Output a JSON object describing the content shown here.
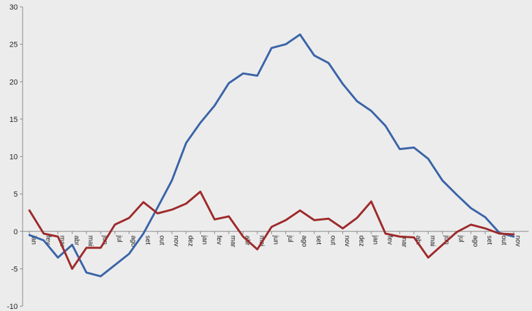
{
  "chart_data": {
    "type": "line",
    "title": "",
    "xlabel": "",
    "ylabel": "",
    "ylim": [
      -10,
      30
    ],
    "yticks": [
      -10,
      -5,
      0,
      5,
      10,
      15,
      20,
      25,
      30
    ],
    "grid": false,
    "legend": "none",
    "categories": [
      "jan",
      "fev",
      "mar",
      "abr",
      "mai",
      "jun",
      "jul",
      "ago",
      "set",
      "out",
      "nov",
      "dez",
      "jan",
      "fev",
      "mar",
      "abr",
      "mai",
      "jun",
      "jul",
      "ago",
      "set",
      "out",
      "nov",
      "dez",
      "jan",
      "fev",
      "mar",
      "abr",
      "mai",
      "jun",
      "jul",
      "ago",
      "set",
      "out",
      "nov"
    ],
    "series": [
      {
        "color": "#3a64a8",
        "values": [
          -0.5,
          -1.2,
          -3.5,
          -1.8,
          -5.5,
          -6.0,
          -4.5,
          -3.0,
          -0.3,
          3.2,
          6.8,
          11.8,
          14.5,
          16.8,
          19.8,
          21.1,
          20.8,
          24.5,
          25.0,
          26.3,
          23.5,
          22.5,
          19.7,
          17.4,
          16.1,
          14.1,
          11.0,
          11.2,
          9.7,
          6.8,
          4.9,
          3.1,
          1.9,
          -0.2,
          -0.7
        ]
      },
      {
        "color": "#9e2a2b",
        "values": [
          2.8,
          -0.3,
          -0.7,
          -5.0,
          -2.2,
          -2.2,
          0.9,
          1.8,
          3.9,
          2.4,
          2.9,
          3.7,
          5.3,
          1.6,
          2.0,
          -0.7,
          -2.4,
          0.6,
          1.5,
          2.8,
          1.5,
          1.7,
          0.4,
          1.8,
          4.0,
          -0.3,
          -0.7,
          -0.8,
          -3.5,
          -1.8,
          -0.1,
          0.9,
          0.4,
          -0.3,
          -0.4
        ]
      }
    ]
  }
}
